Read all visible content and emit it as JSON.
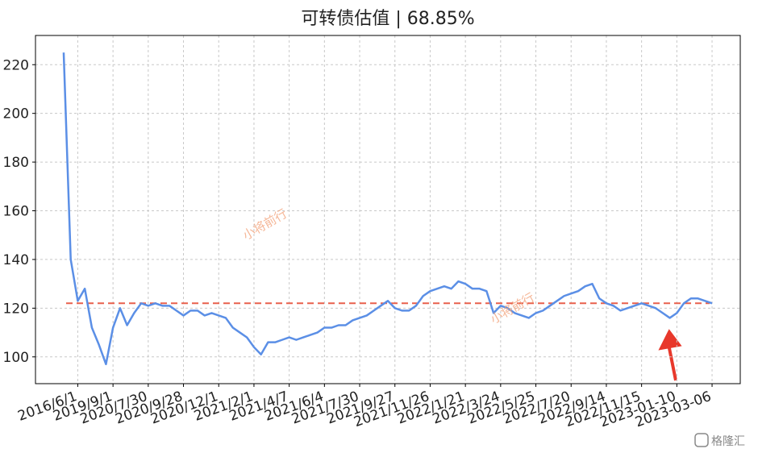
{
  "chart_data": {
    "type": "line",
    "title": "可转债估值 | 68.85%",
    "series": [
      {
        "name": "可转债估值",
        "color": "#5b8fe6",
        "values": [
          225,
          140,
          123,
          128,
          112,
          105,
          97,
          112,
          120,
          113,
          118,
          122,
          121,
          122,
          121,
          121,
          119,
          117,
          119,
          119,
          117,
          118,
          117,
          116,
          112,
          110,
          108,
          104,
          101,
          106,
          106,
          107,
          108,
          107,
          108,
          109,
          110,
          112,
          112,
          113,
          113,
          115,
          116,
          117,
          119,
          121,
          123,
          120,
          119,
          119,
          121,
          125,
          127,
          128,
          129,
          128,
          131,
          130,
          128,
          128,
          127,
          118,
          121,
          120,
          118,
          117,
          116,
          118,
          119,
          121,
          123,
          125,
          126,
          127,
          129,
          130,
          124,
          122,
          121,
          119,
          120,
          121,
          122,
          121,
          120,
          118,
          116,
          118,
          122,
          124,
          124,
          123,
          122
        ]
      }
    ],
    "hline": {
      "value": 122,
      "color": "#e8604c"
    },
    "xlim": [
      -4,
      96
    ],
    "xticks": [
      {
        "value": 2,
        "label": "2016/6/1"
      },
      {
        "value": 7,
        "label": "2019/9/1"
      },
      {
        "value": 12,
        "label": "2020/7/30"
      },
      {
        "value": 17,
        "label": "2020/9/28"
      },
      {
        "value": 22,
        "label": "2020/12/1"
      },
      {
        "value": 27,
        "label": "2021/2/1"
      },
      {
        "value": 32,
        "label": "2021/4/7"
      },
      {
        "value": 37,
        "label": "2021/6/4"
      },
      {
        "value": 42,
        "label": "2021/7/30"
      },
      {
        "value": 47,
        "label": "2021/9/27"
      },
      {
        "value": 52,
        "label": "2021/11/26"
      },
      {
        "value": 57,
        "label": "2022/1/21"
      },
      {
        "value": 62,
        "label": "2022/3/24"
      },
      {
        "value": 67,
        "label": "2022/5/25"
      },
      {
        "value": 72,
        "label": "2022/7/20"
      },
      {
        "value": 77,
        "label": "2022/9/14"
      },
      {
        "value": 82,
        "label": "2022/11/15"
      },
      {
        "value": 87,
        "label": "2023-01-10"
      },
      {
        "value": 92,
        "label": "2023-03-06"
      }
    ],
    "ylim": [
      89,
      232
    ],
    "yticks": [
      100,
      120,
      140,
      160,
      180,
      200,
      220
    ],
    "grid": true,
    "watermark": "小将前行",
    "logo": "格隆汇"
  }
}
